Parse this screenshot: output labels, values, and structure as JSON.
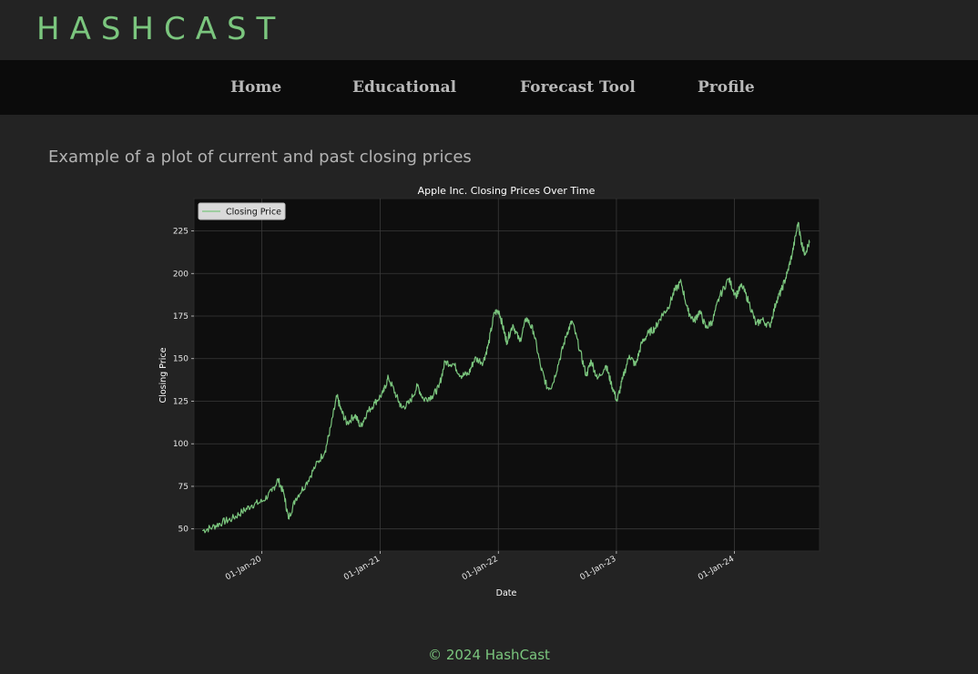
{
  "header": {
    "brand": "HASHCAST"
  },
  "nav": {
    "items": [
      {
        "label": "Home"
      },
      {
        "label": "Educational"
      },
      {
        "label": "Forecast Tool"
      },
      {
        "label": "Profile"
      }
    ]
  },
  "main": {
    "heading": "Example of a plot of current and past closing prices"
  },
  "footer": {
    "text": "© 2024 HashCast"
  },
  "colors": {
    "accent": "#7bc67e",
    "background": "#232323",
    "nav_background": "#0b0b0b",
    "plot_background": "#0e0e0e",
    "series_line": "#7bc67e"
  },
  "chart_data": {
    "type": "line",
    "title": "Apple Inc. Closing Prices Over Time",
    "xlabel": "Date",
    "ylabel": "Closing Price",
    "legend": {
      "entries": [
        "Closing Price"
      ],
      "position": "top-left"
    },
    "grid": true,
    "x_ticks": [
      "2020-01-01",
      "2021-01-01",
      "2022-01-01",
      "2023-01-01",
      "2024-01-01"
    ],
    "x_tick_labels": [
      "01-Jan-20",
      "01-Jan-21",
      "01-Jan-22",
      "01-Jan-23",
      "01-Jan-24"
    ],
    "y_ticks": [
      50,
      75,
      100,
      125,
      150,
      175,
      200,
      225
    ],
    "xlim": [
      "2019-06-05",
      "2024-09-20"
    ],
    "ylim": [
      37,
      244
    ],
    "series": [
      {
        "name": "Closing Price",
        "x": [
          "2019-07-01",
          "2019-08-01",
          "2019-09-01",
          "2019-10-01",
          "2019-11-01",
          "2019-12-01",
          "2020-01-01",
          "2020-02-01",
          "2020-02-20",
          "2020-03-10",
          "2020-03-23",
          "2020-04-15",
          "2020-05-15",
          "2020-06-15",
          "2020-07-15",
          "2020-08-01",
          "2020-08-20",
          "2020-09-01",
          "2020-09-20",
          "2020-10-15",
          "2020-11-01",
          "2020-11-20",
          "2020-12-15",
          "2021-01-10",
          "2021-01-26",
          "2021-02-20",
          "2021-03-08",
          "2021-04-01",
          "2021-04-26",
          "2021-05-15",
          "2021-06-10",
          "2021-07-01",
          "2021-07-20",
          "2021-08-15",
          "2021-09-07",
          "2021-10-01",
          "2021-10-20",
          "2021-11-15",
          "2021-12-01",
          "2021-12-20",
          "2022-01-03",
          "2022-01-20",
          "2022-01-27",
          "2022-02-15",
          "2022-03-08",
          "2022-03-29",
          "2022-04-20",
          "2022-05-12",
          "2022-06-01",
          "2022-06-16",
          "2022-07-10",
          "2022-08-01",
          "2022-08-17",
          "2022-09-10",
          "2022-09-30",
          "2022-10-15",
          "2022-11-03",
          "2022-11-30",
          "2022-12-15",
          "2023-01-03",
          "2023-01-20",
          "2023-02-10",
          "2023-03-01",
          "2023-03-20",
          "2023-04-10",
          "2023-05-01",
          "2023-05-20",
          "2023-06-10",
          "2023-06-30",
          "2023-07-20",
          "2023-08-10",
          "2023-08-30",
          "2023-09-15",
          "2023-10-05",
          "2023-10-25",
          "2023-11-15",
          "2023-12-14",
          "2024-01-05",
          "2024-01-24",
          "2024-02-15",
          "2024-03-08",
          "2024-03-25",
          "2024-04-19",
          "2024-05-10",
          "2024-05-25",
          "2024-06-12",
          "2024-06-28",
          "2024-07-16",
          "2024-07-26",
          "2024-08-05",
          "2024-08-20"
        ],
        "y": [
          49,
          51,
          54,
          56,
          60,
          64,
          66,
          72,
          79,
          70,
          56,
          68,
          76,
          87,
          96,
          110,
          128,
          120,
          112,
          117,
          110,
          118,
          124,
          130,
          139,
          128,
          121,
          124,
          134,
          126,
          128,
          133,
          148,
          147,
          140,
          141,
          150,
          148,
          158,
          177,
          178,
          165,
          160,
          170,
          160,
          174,
          166,
          145,
          133,
          134,
          150,
          165,
          172,
          155,
          140,
          149,
          138,
          146,
          136,
          125,
          138,
          152,
          146,
          159,
          165,
          168,
          175,
          180,
          190,
          195,
          178,
          172,
          178,
          168,
          172,
          186,
          197,
          187,
          193,
          183,
          170,
          173,
          169,
          184,
          190,
          200,
          212,
          230,
          218,
          212,
          218
        ]
      }
    ]
  }
}
